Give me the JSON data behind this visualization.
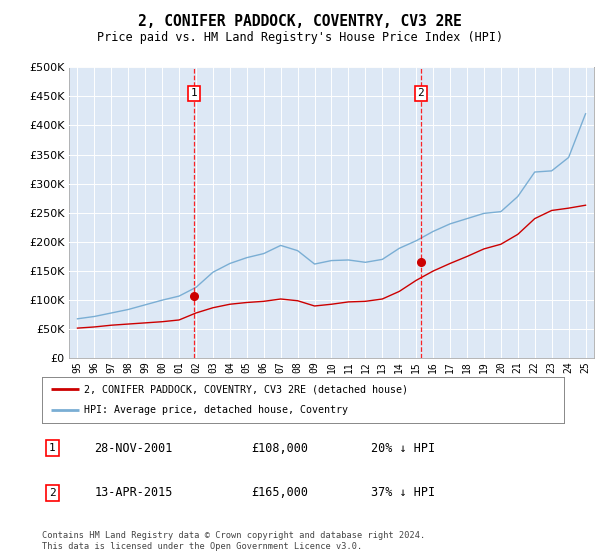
{
  "title": "2, CONIFER PADDOCK, COVENTRY, CV3 2RE",
  "subtitle": "Price paid vs. HM Land Registry's House Price Index (HPI)",
  "legend_entry1": "2, CONIFER PADDOCK, COVENTRY, CV3 2RE (detached house)",
  "legend_entry2": "HPI: Average price, detached house, Coventry",
  "annotation1_label": "1",
  "annotation1_date": "28-NOV-2001",
  "annotation1_price": "£108,000",
  "annotation1_hpi": "20% ↓ HPI",
  "annotation1_year": 2001.9,
  "annotation1_value": 108000,
  "annotation2_label": "2",
  "annotation2_date": "13-APR-2015",
  "annotation2_price": "£165,000",
  "annotation2_hpi": "37% ↓ HPI",
  "annotation2_year": 2015.28,
  "annotation2_value": 165000,
  "footer1": "Contains HM Land Registry data © Crown copyright and database right 2024.",
  "footer2": "This data is licensed under the Open Government Licence v3.0.",
  "hpi_color": "#7aaed4",
  "price_color": "#cc0000",
  "background_color": "#dde8f5",
  "ylim": [
    0,
    500000
  ],
  "yticks": [
    0,
    50000,
    100000,
    150000,
    200000,
    250000,
    300000,
    350000,
    400000,
    450000,
    500000
  ],
  "hpi_data_years": [
    1995,
    1996,
    1997,
    1998,
    1999,
    2000,
    2001,
    2002,
    2003,
    2004,
    2005,
    2006,
    2007,
    2008,
    2009,
    2010,
    2011,
    2012,
    2013,
    2014,
    2015,
    2016,
    2017,
    2018,
    2019,
    2020,
    2021,
    2022,
    2023,
    2024,
    2025
  ],
  "hpi_data_values": [
    68000,
    72000,
    78000,
    84000,
    92000,
    100000,
    107000,
    122000,
    148000,
    163000,
    173000,
    180000,
    194000,
    185000,
    162000,
    168000,
    169000,
    165000,
    170000,
    189000,
    202000,
    218000,
    231000,
    240000,
    249000,
    252000,
    278000,
    320000,
    322000,
    345000,
    420000
  ],
  "price_data_years": [
    1995,
    1996,
    1997,
    1998,
    1999,
    2000,
    2001,
    2002,
    2003,
    2004,
    2005,
    2006,
    2007,
    2008,
    2009,
    2010,
    2011,
    2012,
    2013,
    2014,
    2015,
    2016,
    2017,
    2018,
    2019,
    2020,
    2021,
    2022,
    2023,
    2024,
    2025
  ],
  "price_data_values": [
    52000,
    54000,
    57000,
    59000,
    61000,
    63000,
    66000,
    78000,
    87000,
    93000,
    96000,
    98000,
    102000,
    99000,
    90000,
    93000,
    97000,
    98000,
    102000,
    115000,
    134000,
    150000,
    163000,
    175000,
    188000,
    196000,
    213000,
    240000,
    254000,
    258000,
    263000
  ],
  "xtick_years": [
    1995,
    1996,
    1997,
    1998,
    1999,
    2000,
    2001,
    2002,
    2003,
    2004,
    2005,
    2006,
    2007,
    2008,
    2009,
    2010,
    2011,
    2012,
    2013,
    2014,
    2015,
    2016,
    2017,
    2018,
    2019,
    2020,
    2021,
    2022,
    2023,
    2024,
    2025
  ]
}
